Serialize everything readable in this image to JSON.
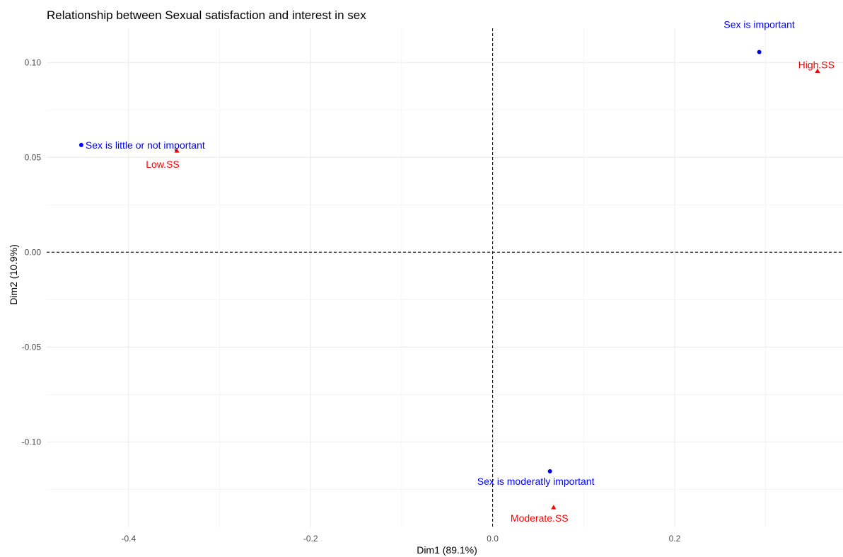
{
  "chart_data": {
    "type": "scatter",
    "title": "Relationship between Sexual satisfaction and interest in sex",
    "xlabel": "Dim1 (89.1%)",
    "ylabel": "Dim2 (10.9%)",
    "xlim": [
      -0.49,
      0.385
    ],
    "ylim": [
      -0.145,
      0.118
    ],
    "x_ticks": [
      -0.4,
      -0.2,
      0.0,
      0.2
    ],
    "x_tick_labels": [
      "-0.4",
      "-0.2",
      "0.0",
      "0.2"
    ],
    "y_ticks": [
      0.1,
      0.05,
      0.0,
      -0.05,
      -0.1
    ],
    "y_tick_labels": [
      "0.10",
      "0.05",
      "0.00",
      "-0.05",
      "-0.10"
    ],
    "grid": true,
    "reference_lines": {
      "x": 0,
      "y": 0,
      "style": "dashed"
    },
    "series": [
      {
        "color": "#0000ff",
        "marker": "circle",
        "points": [
          {
            "x": -0.452,
            "y": 0.0565,
            "label": "Sex is little or not important"
          },
          {
            "x": 0.293,
            "y": 0.1055,
            "label": "Sex is important"
          },
          {
            "x": 0.063,
            "y": -0.1155,
            "label": "Sex is moderatly important"
          }
        ]
      },
      {
        "color": "#ff0000",
        "marker": "triangle",
        "points": [
          {
            "x": -0.347,
            "y": 0.0535,
            "label": "Low.SS"
          },
          {
            "x": 0.357,
            "y": 0.0955,
            "label": "High.SS"
          },
          {
            "x": 0.067,
            "y": -0.1345,
            "label": "Moderate.SS"
          }
        ]
      }
    ]
  }
}
